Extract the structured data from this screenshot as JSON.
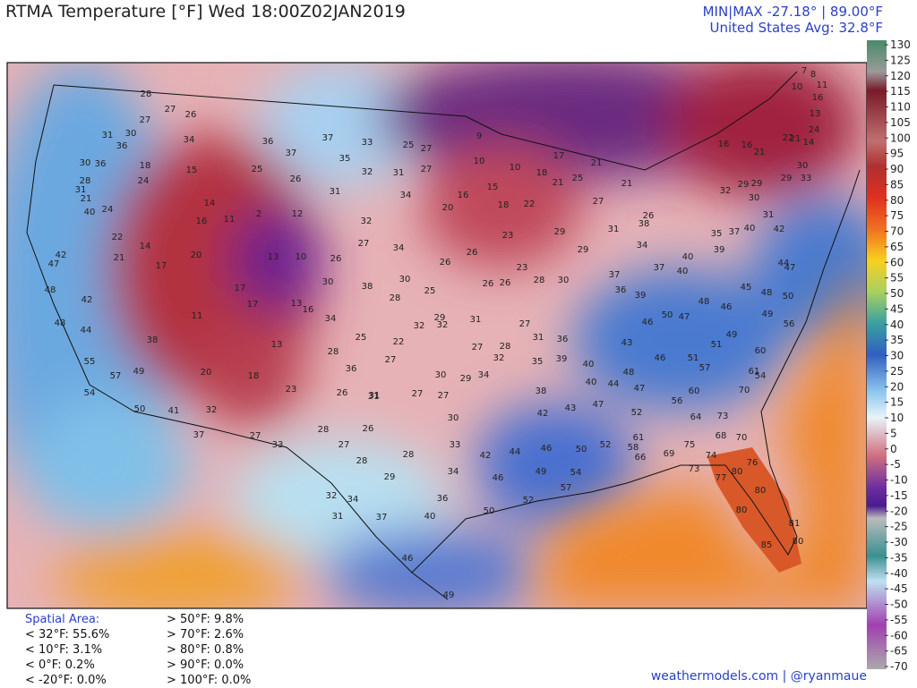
{
  "header": {
    "title": "RTMA Temperature [°F]  Wed 18:00Z02JAN2019",
    "minmax": "MIN|MAX -27.18°  |  89.00°F",
    "average": "United States Avg: 32.8°F"
  },
  "colorbar": {
    "ticks": [
      130,
      125,
      120,
      115,
      110,
      105,
      100,
      95,
      90,
      85,
      80,
      75,
      70,
      65,
      60,
      55,
      50,
      45,
      40,
      35,
      30,
      25,
      20,
      15,
      10,
      5,
      0,
      -5,
      -10,
      -15,
      -20,
      -25,
      -30,
      -35,
      -40,
      -45,
      -50,
      -55,
      -60,
      -65,
      -70
    ]
  },
  "spatial_area": {
    "title": "Spatial Area:",
    "below": [
      "< 32°F: 55.6%",
      "< 10°F: 3.1%",
      "< 0°F: 0.2%",
      "< -20°F: 0.0%"
    ],
    "above": [
      "> 50°F: 9.8%",
      "> 70°F: 2.6%",
      "> 80°F: 0.8%",
      "> 90°F: 0.0%",
      "> 100°F: 0.0%"
    ]
  },
  "credit": "weathermodels.com | @ryanmaue",
  "stations": [
    28,
    27,
    26,
    27,
    31,
    30,
    34,
    30,
    36,
    28,
    36,
    18,
    24,
    15,
    14,
    16,
    11,
    2,
    12,
    14,
    22,
    21,
    17,
    20,
    17,
    13,
    10,
    17,
    13,
    16,
    11,
    13,
    18,
    23,
    20,
    49,
    41,
    32,
    37,
    27,
    33,
    28,
    27,
    26,
    28,
    28,
    29,
    32,
    34,
    31,
    37,
    40,
    36,
    34,
    33,
    42,
    30,
    27,
    27,
    29,
    30,
    31,
    22,
    32,
    32,
    31,
    27,
    28,
    26,
    28,
    30,
    27,
    31,
    36,
    35,
    39,
    40,
    40,
    38,
    42,
    43,
    47,
    52,
    50,
    52,
    46,
    44,
    49,
    46,
    52,
    50,
    49,
    46,
    54,
    57,
    58,
    61,
    66,
    69,
    75,
    68,
    70,
    73,
    74,
    77,
    80,
    76,
    80,
    80,
    81,
    80,
    85,
    60,
    57,
    61,
    70,
    64,
    73,
    54,
    56,
    47,
    44,
    48,
    46,
    51,
    51,
    49,
    60,
    49,
    56,
    50,
    48,
    45,
    46,
    48,
    47,
    50,
    43,
    46,
    39,
    36,
    37,
    37,
    40,
    40,
    34,
    38,
    31,
    29,
    29,
    23,
    26,
    26,
    16,
    15,
    18,
    22,
    18,
    21,
    25,
    27,
    21,
    26,
    21,
    17,
    10,
    10,
    9,
    27,
    25,
    33,
    35,
    32,
    37,
    37,
    36,
    25,
    26,
    31,
    31,
    27,
    34,
    20,
    32,
    27,
    34,
    30,
    25,
    26,
    23,
    26,
    30,
    38,
    28,
    34,
    28,
    25,
    27,
    36,
    26,
    31,
    34,
    32,
    29,
    16,
    16,
    21,
    22,
    21,
    24,
    14,
    13,
    10,
    11,
    16,
    7,
    8,
    29,
    29,
    32,
    29,
    30,
    33,
    30,
    31,
    42,
    44,
    47,
    40,
    37,
    35,
    39,
    40,
    42,
    47,
    48,
    42,
    48,
    44,
    55,
    57,
    38,
    54,
    50,
    21,
    31,
    24
  ]
}
